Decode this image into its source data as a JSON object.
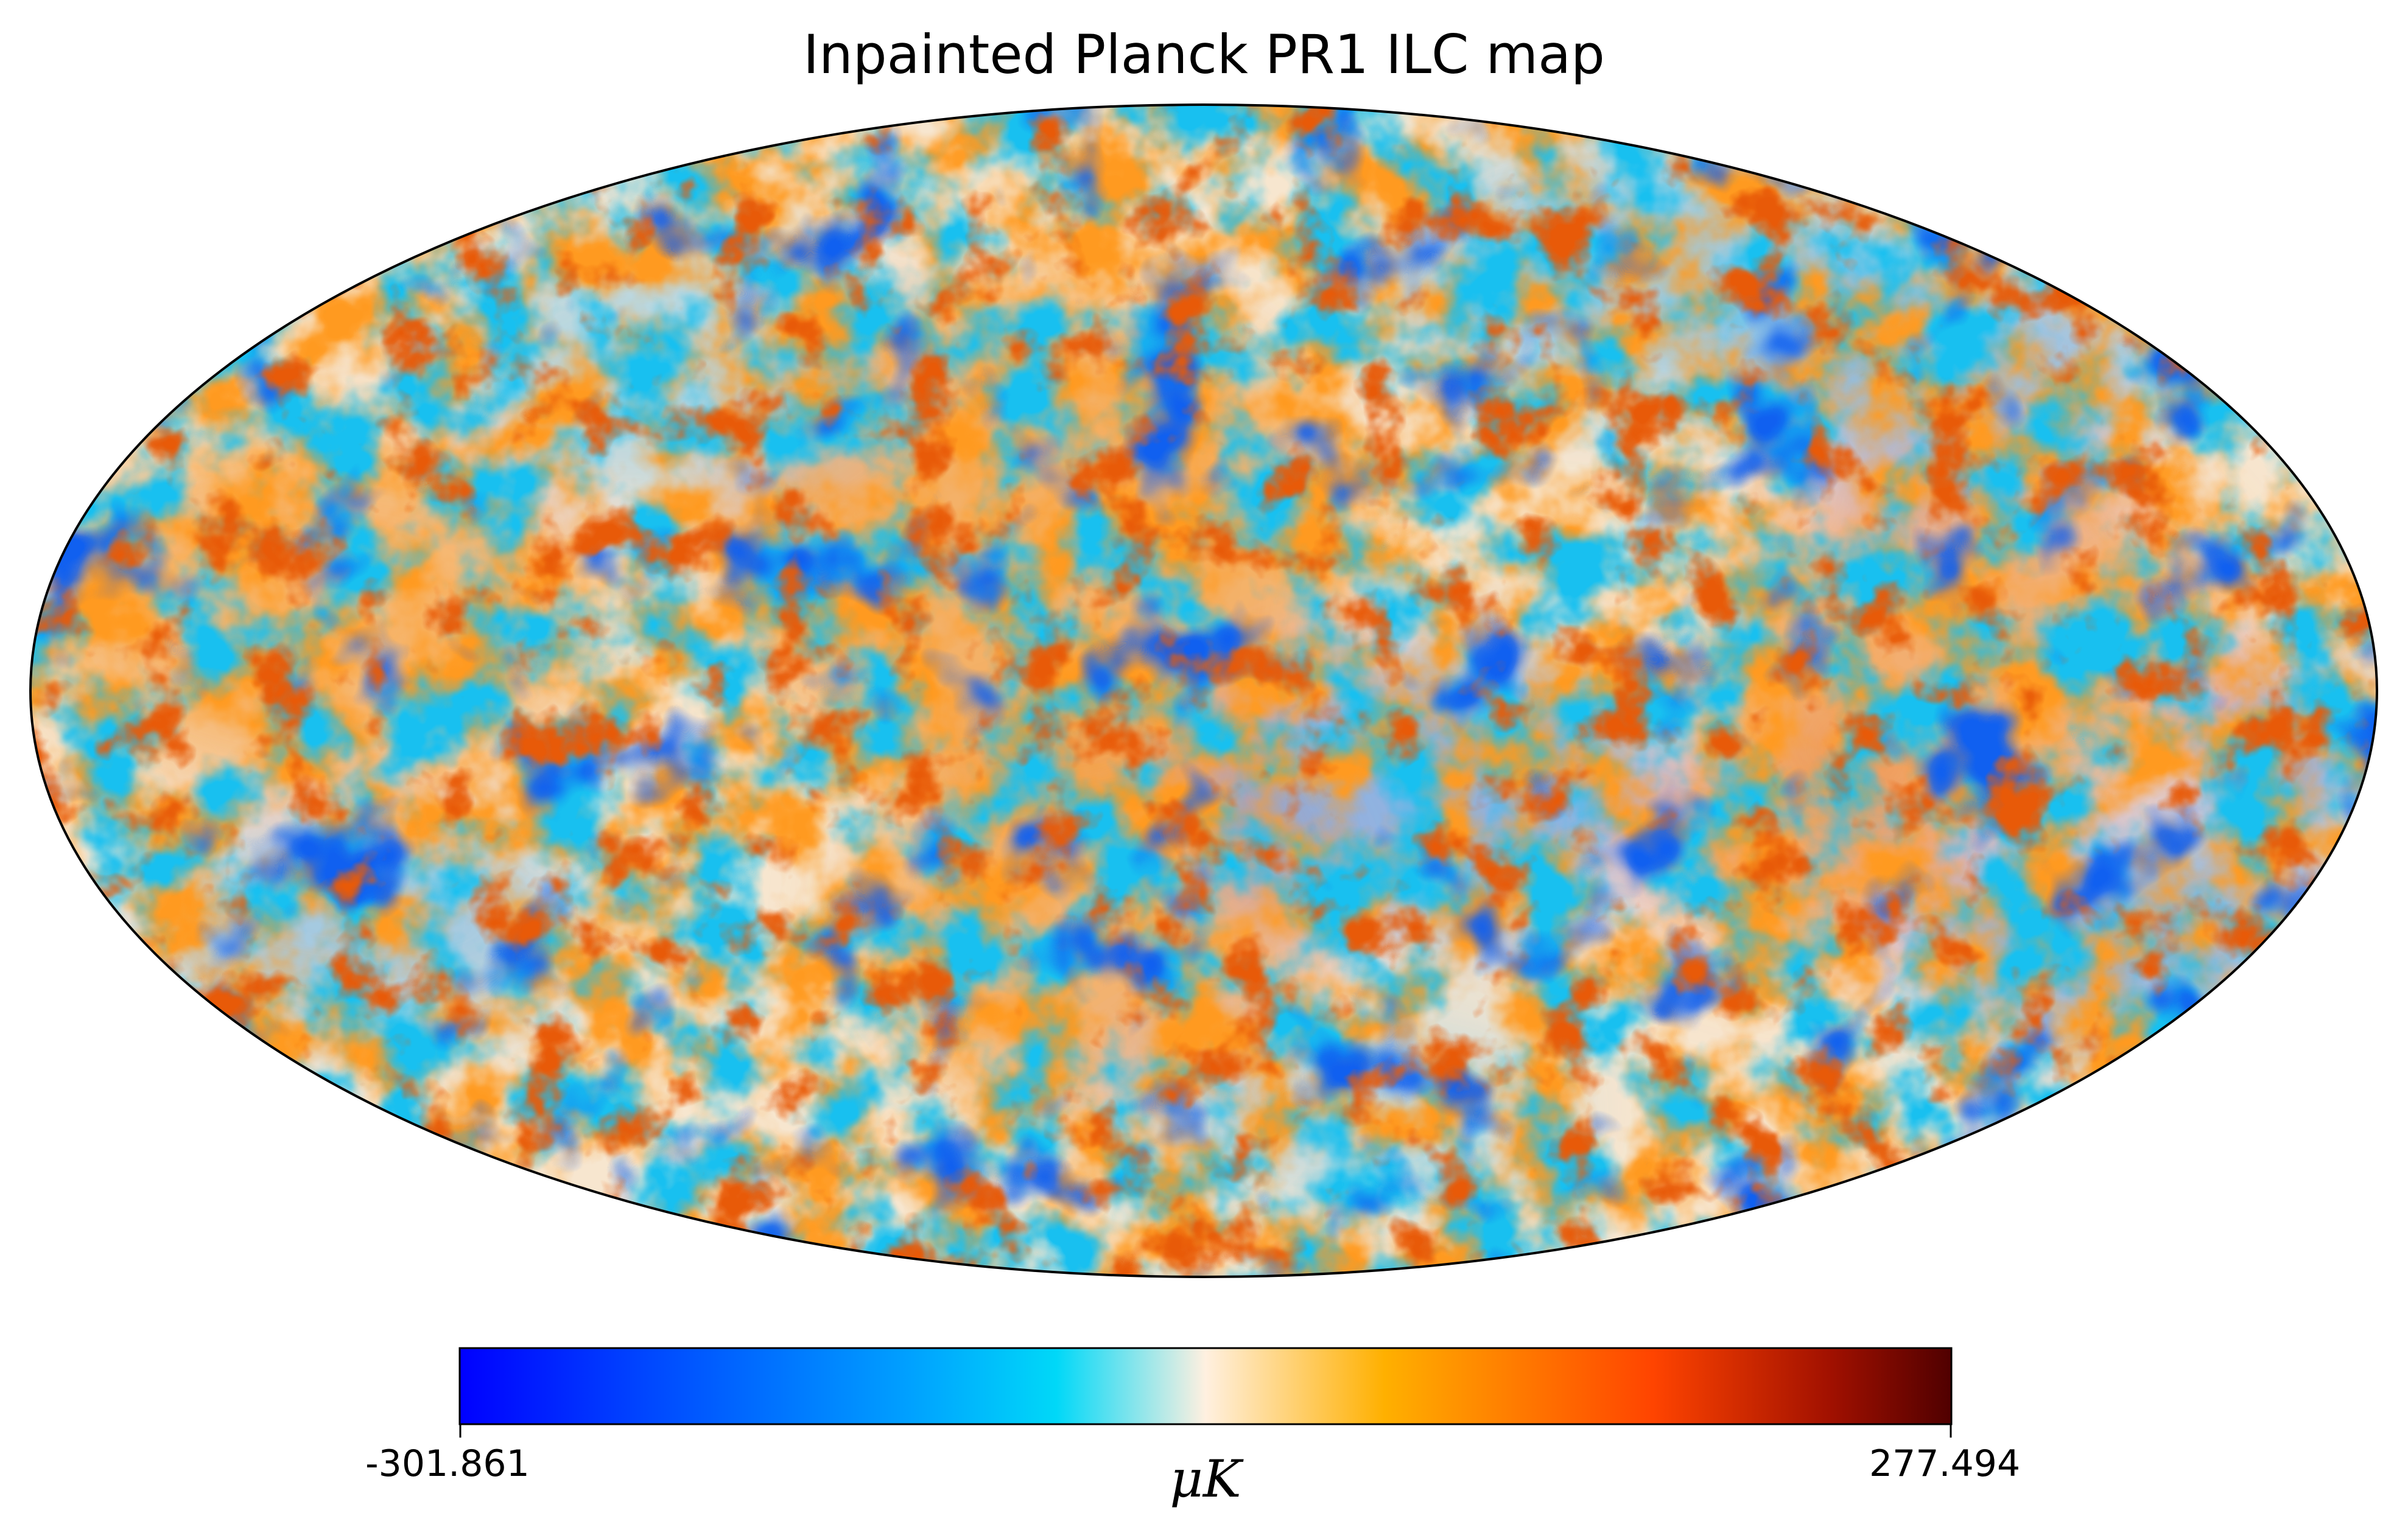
{
  "figure": {
    "title": "Inpainted Planck PR1 ILC map",
    "projection": "Mollweide",
    "colorbar": {
      "min_label": "-301.861",
      "max_label": "277.494",
      "unit_label": "μK",
      "colormap_stops": [
        "#0000ff",
        "#0044ff",
        "#00a0ff",
        "#00d8f8",
        "#fff0e0",
        "#ffb000",
        "#ff4400",
        "#a01000",
        "#500000"
      ]
    }
  }
}
